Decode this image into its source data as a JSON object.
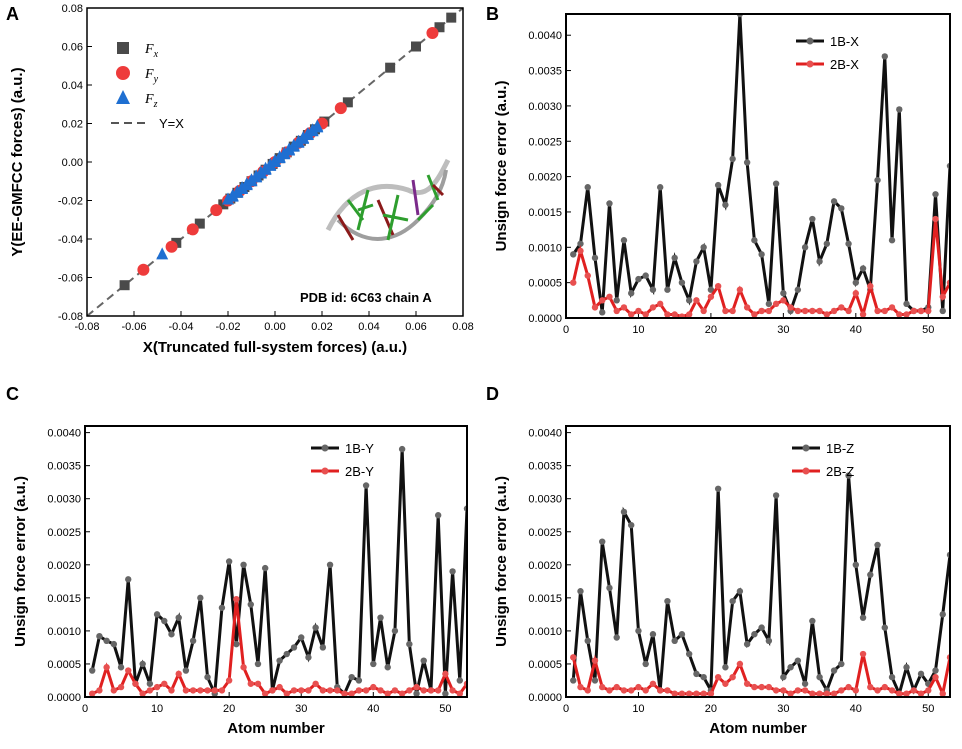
{
  "chart_data": [
    {
      "panel": "A",
      "type": "scatter",
      "xlabel": "X(Truncated full-system forces) (a.u.)",
      "ylabel": "Y(EE-GMFCC forces) (a.u.)",
      "xlim": [
        -0.08,
        0.08
      ],
      "ylim": [
        -0.08,
        0.08
      ],
      "xticks": [
        "-0.08",
        "-0.06",
        "-0.04",
        "-0.02",
        "0.00",
        "0.02",
        "0.04",
        "0.06",
        "0.08"
      ],
      "yticks": [
        "-0.08",
        "-0.06",
        "-0.04",
        "-0.02",
        "0.00",
        "0.02",
        "0.04",
        "0.06",
        "0.08"
      ],
      "annotation": "PDB id: 6C63 chain A",
      "legend": [
        {
          "sym": "F",
          "sub": "x",
          "color": "#4a4a4a",
          "marker": "square"
        },
        {
          "sym": "F",
          "sub": "y",
          "color": "#ee3b3b",
          "marker": "circle"
        },
        {
          "sym": "F",
          "sub": "z",
          "color": "#1f6fd1",
          "marker": "triangle"
        },
        {
          "label": "Y=X",
          "color": "#555555",
          "marker": "dashed-line"
        }
      ],
      "series": [
        {
          "name": "Fx",
          "x": [
            -0.064,
            -0.042,
            -0.032,
            -0.022,
            -0.019,
            -0.016,
            -0.013,
            -0.01,
            -0.007,
            -0.004,
            -0.001,
            0.002,
            0.005,
            0.008,
            0.011,
            0.014,
            0.017,
            0.021,
            0.031,
            0.049,
            0.06,
            0.07,
            0.075
          ],
          "y": [
            -0.064,
            -0.042,
            -0.032,
            -0.022,
            -0.019,
            -0.016,
            -0.013,
            -0.01,
            -0.007,
            -0.004,
            -0.001,
            0.002,
            0.005,
            0.008,
            0.011,
            0.014,
            0.017,
            0.021,
            0.031,
            0.049,
            0.06,
            0.07,
            0.075
          ]
        },
        {
          "name": "Fy",
          "x": [
            -0.056,
            -0.044,
            -0.035,
            -0.025,
            -0.02,
            -0.015,
            -0.01,
            -0.005,
            0.0,
            0.005,
            0.01,
            0.015,
            0.02,
            0.028,
            0.067
          ],
          "y": [
            -0.056,
            -0.044,
            -0.035,
            -0.025,
            -0.02,
            -0.015,
            -0.01,
            -0.005,
            0.0,
            0.005,
            0.01,
            0.015,
            0.02,
            0.028,
            0.067
          ]
        },
        {
          "name": "Fz",
          "x": [
            -0.048,
            -0.018,
            -0.016,
            -0.014,
            -0.012,
            -0.01,
            -0.008,
            -0.006,
            -0.004,
            -0.002,
            0.0,
            0.002,
            0.004,
            0.006,
            0.008,
            0.01,
            0.012,
            0.014,
            0.016,
            0.018
          ],
          "y": [
            -0.048,
            -0.018,
            -0.016,
            -0.014,
            -0.012,
            -0.01,
            -0.008,
            -0.006,
            -0.004,
            -0.002,
            0.0,
            0.002,
            0.004,
            0.006,
            0.008,
            0.01,
            0.012,
            0.014,
            0.016,
            0.018
          ]
        }
      ]
    },
    {
      "panel": "B",
      "type": "line",
      "xlabel": "",
      "ylabel": "Unsign force error (a.u.)",
      "xlim": [
        0,
        53
      ],
      "ylim": [
        0,
        0.0043
      ],
      "xticks": [
        0,
        10,
        20,
        30,
        40,
        50
      ],
      "yticks": [
        "0.0000",
        "0.0005",
        "0.0010",
        "0.0015",
        "0.0020",
        "0.0025",
        "0.0030",
        "0.0035",
        "0.0040"
      ],
      "x": [
        1,
        2,
        3,
        4,
        5,
        6,
        7,
        8,
        9,
        10,
        11,
        12,
        13,
        14,
        15,
        16,
        17,
        18,
        19,
        20,
        21,
        22,
        23,
        24,
        25,
        26,
        27,
        28,
        29,
        30,
        31,
        32,
        33,
        34,
        35,
        36,
        37,
        38,
        39,
        40,
        41,
        42,
        43,
        44,
        45,
        46,
        47,
        48,
        49,
        50,
        51,
        52,
        53
      ],
      "series": [
        {
          "name": "1B-X",
          "color": "#111111",
          "values": [
            0.0009,
            0.00105,
            0.00185,
            0.00085,
            8e-05,
            0.00162,
            0.00025,
            0.0011,
            0.00035,
            0.00055,
            0.0006,
            0.0004,
            0.00185,
            0.0004,
            0.00085,
            0.0005,
            0.00025,
            0.0008,
            0.001,
            0.0004,
            0.00188,
            0.0016,
            0.00225,
            0.0043,
            0.0022,
            0.0011,
            0.0009,
            0.0002,
            0.0019,
            0.00035,
            0.0001,
            0.0004,
            0.001,
            0.0014,
            0.0008,
            0.00105,
            0.00165,
            0.00155,
            0.00105,
            0.0005,
            0.0007,
            0.0004,
            0.00195,
            0.0037,
            0.0011,
            0.00295,
            0.0002,
            0.0001,
            0.0001,
            0.00015,
            0.00175,
            0.0001,
            0.00215
          ]
        },
        {
          "name": "2B-X",
          "color": "#e02020",
          "values": [
            0.0005,
            0.00095,
            0.0006,
            0.00015,
            0.00025,
            0.0003,
            0.0001,
            0.00015,
            5e-05,
            0.0001,
            5e-05,
            0.00015,
            0.0002,
            5e-05,
            5e-05,
            2e-05,
            5e-05,
            0.00025,
            0.0001,
            0.0003,
            0.00045,
            0.0001,
            0.0001,
            0.0004,
            0.00015,
            5e-05,
            0.0001,
            0.0001,
            0.0002,
            0.00025,
            0.00015,
            0.0001,
            0.0001,
            0.0001,
            0.0001,
            5e-05,
            0.0001,
            0.00015,
            0.0001,
            0.00035,
            5e-05,
            0.00045,
            0.0001,
            0.0001,
            0.00015,
            5e-05,
            5e-05,
            0.0001,
            0.0001,
            0.0001,
            0.0014,
            0.0003,
            0.0005
          ]
        }
      ]
    },
    {
      "panel": "C",
      "type": "line",
      "xlabel": "Atom number",
      "ylabel": "Unsign force error (a.u.)",
      "xlim": [
        0,
        53
      ],
      "ylim": [
        0,
        0.0041
      ],
      "xticks": [
        0,
        10,
        20,
        30,
        40,
        50
      ],
      "yticks": [
        "0.0000",
        "0.0005",
        "0.0010",
        "0.0015",
        "0.0020",
        "0.0025",
        "0.0030",
        "0.0035",
        "0.0040"
      ],
      "x": [
        1,
        2,
        3,
        4,
        5,
        6,
        7,
        8,
        9,
        10,
        11,
        12,
        13,
        14,
        15,
        16,
        17,
        18,
        19,
        20,
        21,
        22,
        23,
        24,
        25,
        26,
        27,
        28,
        29,
        30,
        31,
        32,
        33,
        34,
        35,
        36,
        37,
        38,
        39,
        40,
        41,
        42,
        43,
        44,
        45,
        46,
        47,
        48,
        49,
        50,
        51,
        52,
        53
      ],
      "series": [
        {
          "name": "1B-Y",
          "color": "#111111",
          "values": [
            0.0004,
            0.00092,
            0.00085,
            0.0008,
            0.00045,
            0.00178,
            0.0002,
            0.0005,
            0.0002,
            0.00125,
            0.00115,
            0.00095,
            0.0012,
            0.0004,
            0.00085,
            0.0015,
            0.0003,
            5e-05,
            0.00135,
            0.00205,
            0.0008,
            0.002,
            0.0014,
            0.0005,
            0.00195,
            0.0001,
            0.00055,
            0.00065,
            0.00075,
            0.0009,
            0.0006,
            0.00105,
            0.00075,
            0.002,
            0.00015,
            5e-05,
            0.0003,
            0.00025,
            0.0032,
            0.0005,
            0.0012,
            0.00045,
            0.001,
            0.00375,
            0.0008,
            5e-05,
            0.00055,
            0.0001,
            0.00275,
            5e-05,
            0.0019,
            0.00025,
            0.00285
          ]
        },
        {
          "name": "2B-Y",
          "color": "#e02020",
          "values": [
            5e-05,
            0.0001,
            0.00045,
            0.0001,
            0.00015,
            0.0004,
            0.0002,
            5e-05,
            0.0001,
            0.00015,
            0.0002,
            0.0001,
            0.00035,
            0.0001,
            0.0001,
            0.0001,
            0.0001,
            0.0001,
            0.0001,
            0.00025,
            0.00148,
            0.00045,
            0.0002,
            0.0002,
            5e-05,
            0.0001,
            0.00015,
            5e-05,
            0.0001,
            0.0001,
            0.0001,
            0.0002,
            0.0001,
            0.0001,
            0.0001,
            5e-05,
            5e-05,
            0.0001,
            0.0001,
            0.00015,
            0.0001,
            5e-05,
            0.0001,
            5e-05,
            0.0001,
            0.00015,
            0.0001,
            0.0001,
            0.0001,
            0.00035,
            0.0001,
            5e-05,
            0.0002
          ]
        }
      ]
    },
    {
      "panel": "D",
      "type": "line",
      "xlabel": "Atom number",
      "ylabel": "Unsign force error (a.u.)",
      "xlim": [
        0,
        53
      ],
      "ylim": [
        0,
        0.0041
      ],
      "xticks": [
        0,
        10,
        20,
        30,
        40,
        50
      ],
      "yticks": [
        "0.0000",
        "0.0005",
        "0.0010",
        "0.0015",
        "0.0020",
        "0.0025",
        "0.0030",
        "0.0035",
        "0.0040"
      ],
      "x": [
        1,
        2,
        3,
        4,
        5,
        6,
        7,
        8,
        9,
        10,
        11,
        12,
        13,
        14,
        15,
        16,
        17,
        18,
        19,
        20,
        21,
        22,
        23,
        24,
        25,
        26,
        27,
        28,
        29,
        30,
        31,
        32,
        33,
        34,
        35,
        36,
        37,
        38,
        39,
        40,
        41,
        42,
        43,
        44,
        45,
        46,
        47,
        48,
        49,
        50,
        51,
        52,
        53
      ],
      "series": [
        {
          "name": "1B-Z",
          "color": "#111111",
          "values": [
            0.00025,
            0.0016,
            0.00085,
            0.00025,
            0.00235,
            0.00165,
            0.0009,
            0.0028,
            0.0026,
            0.001,
            0.0005,
            0.00095,
            0.0001,
            0.00145,
            0.00085,
            0.00095,
            0.00065,
            0.00035,
            0.0003,
            0.0001,
            0.00315,
            0.00045,
            0.00145,
            0.0016,
            0.0008,
            0.00095,
            0.00105,
            0.00085,
            0.00305,
            0.0003,
            0.00045,
            0.00055,
            0.0002,
            0.00115,
            0.0003,
            0.0001,
            0.0004,
            0.0005,
            0.00335,
            0.002,
            0.0012,
            0.00185,
            0.0023,
            0.00105,
            0.0003,
            5e-05,
            0.00045,
            0.0001,
            0.00035,
            0.0002,
            0.0004,
            0.00125,
            0.00215
          ]
        },
        {
          "name": "2B-Z",
          "color": "#e02020",
          "values": [
            0.0006,
            0.00015,
            0.0001,
            0.00055,
            0.00015,
            0.0001,
            0.00015,
            0.0001,
            0.0001,
            0.00015,
            0.0001,
            0.0002,
            0.0001,
            0.0001,
            5e-05,
            5e-05,
            5e-05,
            5e-05,
            5e-05,
            5e-05,
            0.0003,
            0.0002,
            0.0003,
            0.0005,
            0.0002,
            0.00015,
            0.00015,
            0.00015,
            0.0001,
            0.0001,
            5e-05,
            0.0001,
            0.0001,
            5e-05,
            5e-05,
            5e-05,
            5e-05,
            0.0001,
            0.00015,
            0.0001,
            0.00065,
            0.00015,
            0.0001,
            0.00015,
            0.0001,
            5e-05,
            5e-05,
            0.0001,
            5e-05,
            0.0001,
            0.0003,
            5e-05,
            0.0006
          ]
        }
      ]
    }
  ]
}
